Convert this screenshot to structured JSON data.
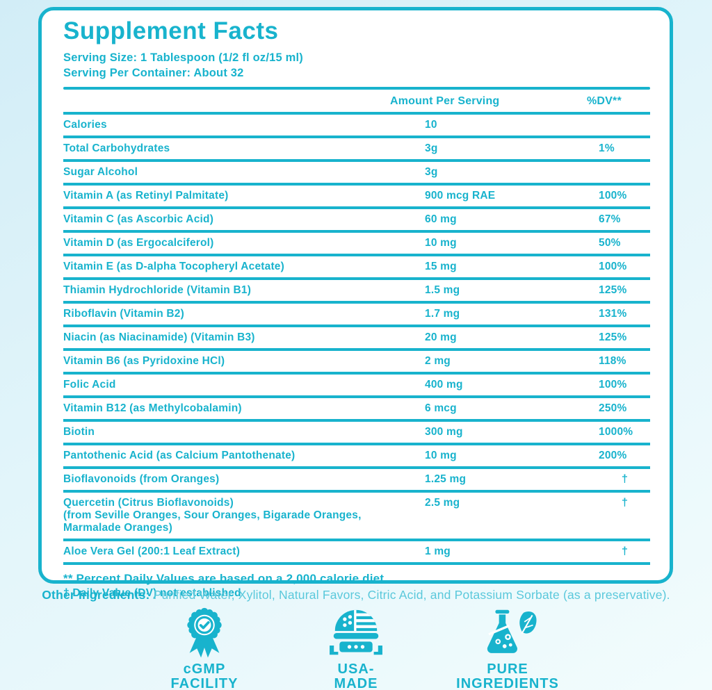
{
  "colors": {
    "teal": "#18b3cd",
    "teal_light": "#5ac8db",
    "background_top": "#d2edf7",
    "background_bottom": "#f2fcfd"
  },
  "panel": {
    "title": "Supplement Facts",
    "serving_size": "Serving Size: 1 Tablespoon (1/2 fl oz/15 ml)",
    "servings_per_container": "Serving Per Container: About 32",
    "header": {
      "amount": "Amount Per Serving",
      "dv": "%DV**"
    },
    "rows": [
      {
        "name": "Calories",
        "amount": "10",
        "dv": ""
      },
      {
        "name": "Total Carbohydrates",
        "amount": "3g",
        "dv": "1%"
      },
      {
        "name": "Sugar Alcohol",
        "amount": "3g",
        "dv": ""
      },
      {
        "name": "Vitamin A (as Retinyl Palmitate)",
        "amount": "900 mcg RAE",
        "dv": "100%"
      },
      {
        "name": "Vitamin C (as Ascorbic Acid)",
        "amount": "60 mg",
        "dv": "67%"
      },
      {
        "name": "Vitamin D (as Ergocalciferol)",
        "amount": "10 mg",
        "dv": "50%"
      },
      {
        "name": "Vitamin E (as D-alpha Tocopheryl Acetate)",
        "amount": "15 mg",
        "dv": "100%"
      },
      {
        "name": "Thiamin Hydrochloride (Vitamin B1)",
        "amount": "1.5 mg",
        "dv": "125%"
      },
      {
        "name": "Riboflavin (Vitamin B2)",
        "amount": "1.7 mg",
        "dv": "131%"
      },
      {
        "name": "Niacin (as Niacinamide) (Vitamin B3)",
        "amount": "20 mg",
        "dv": "125%"
      },
      {
        "name": "Vitamin B6 (as Pyridoxine HCl)",
        "amount": "2 mg",
        "dv": "118%"
      },
      {
        "name": "Folic Acid",
        "amount": "400 mg",
        "dv": "100%"
      },
      {
        "name": "Vitamin B12 (as Methylcobalamin)",
        "amount": "6 mcg",
        "dv": "250%"
      },
      {
        "name": "Biotin",
        "amount": "300 mg",
        "dv": "1000%"
      },
      {
        "name": "Pantothenic Acid (as Calcium Pantothenate)",
        "amount": "10 mg",
        "dv": "200%"
      },
      {
        "name": "Bioflavonoids (from Oranges)",
        "amount": "1.25 mg",
        "dv": "†"
      },
      {
        "name": "Quercetin (Citrus Bioflavonoids)",
        "name_lines": [
          "(from Seville Oranges, Sour Oranges, Bigarade Oranges,",
          "Marmalade Oranges)"
        ],
        "amount": "2.5 mg",
        "dv": "†"
      },
      {
        "name": "Aloe Vera Gel (200:1 Leaf Extract)",
        "amount": "1 mg",
        "dv": "†"
      }
    ],
    "footnotes": [
      "** Percent Daily Values are based on a 2,000 calorie diet.",
      "† Daily Value (DV) not established"
    ]
  },
  "other_ingredients": {
    "label": "Other Ingredients:",
    "text": " Purified Water, Xylitol, Natural Favors, Citric Acid, and Potassium Sorbate (as a preservative)."
  },
  "badges": [
    {
      "icon": "award-seal-icon",
      "line1": "cGMP",
      "line2": "FACILITY"
    },
    {
      "icon": "usa-capitol-flag-icon",
      "line1": "USA-",
      "line2": "MADE"
    },
    {
      "icon": "flask-leaf-icon",
      "line1": "PURE",
      "line2": "INGREDIENTS"
    }
  ]
}
